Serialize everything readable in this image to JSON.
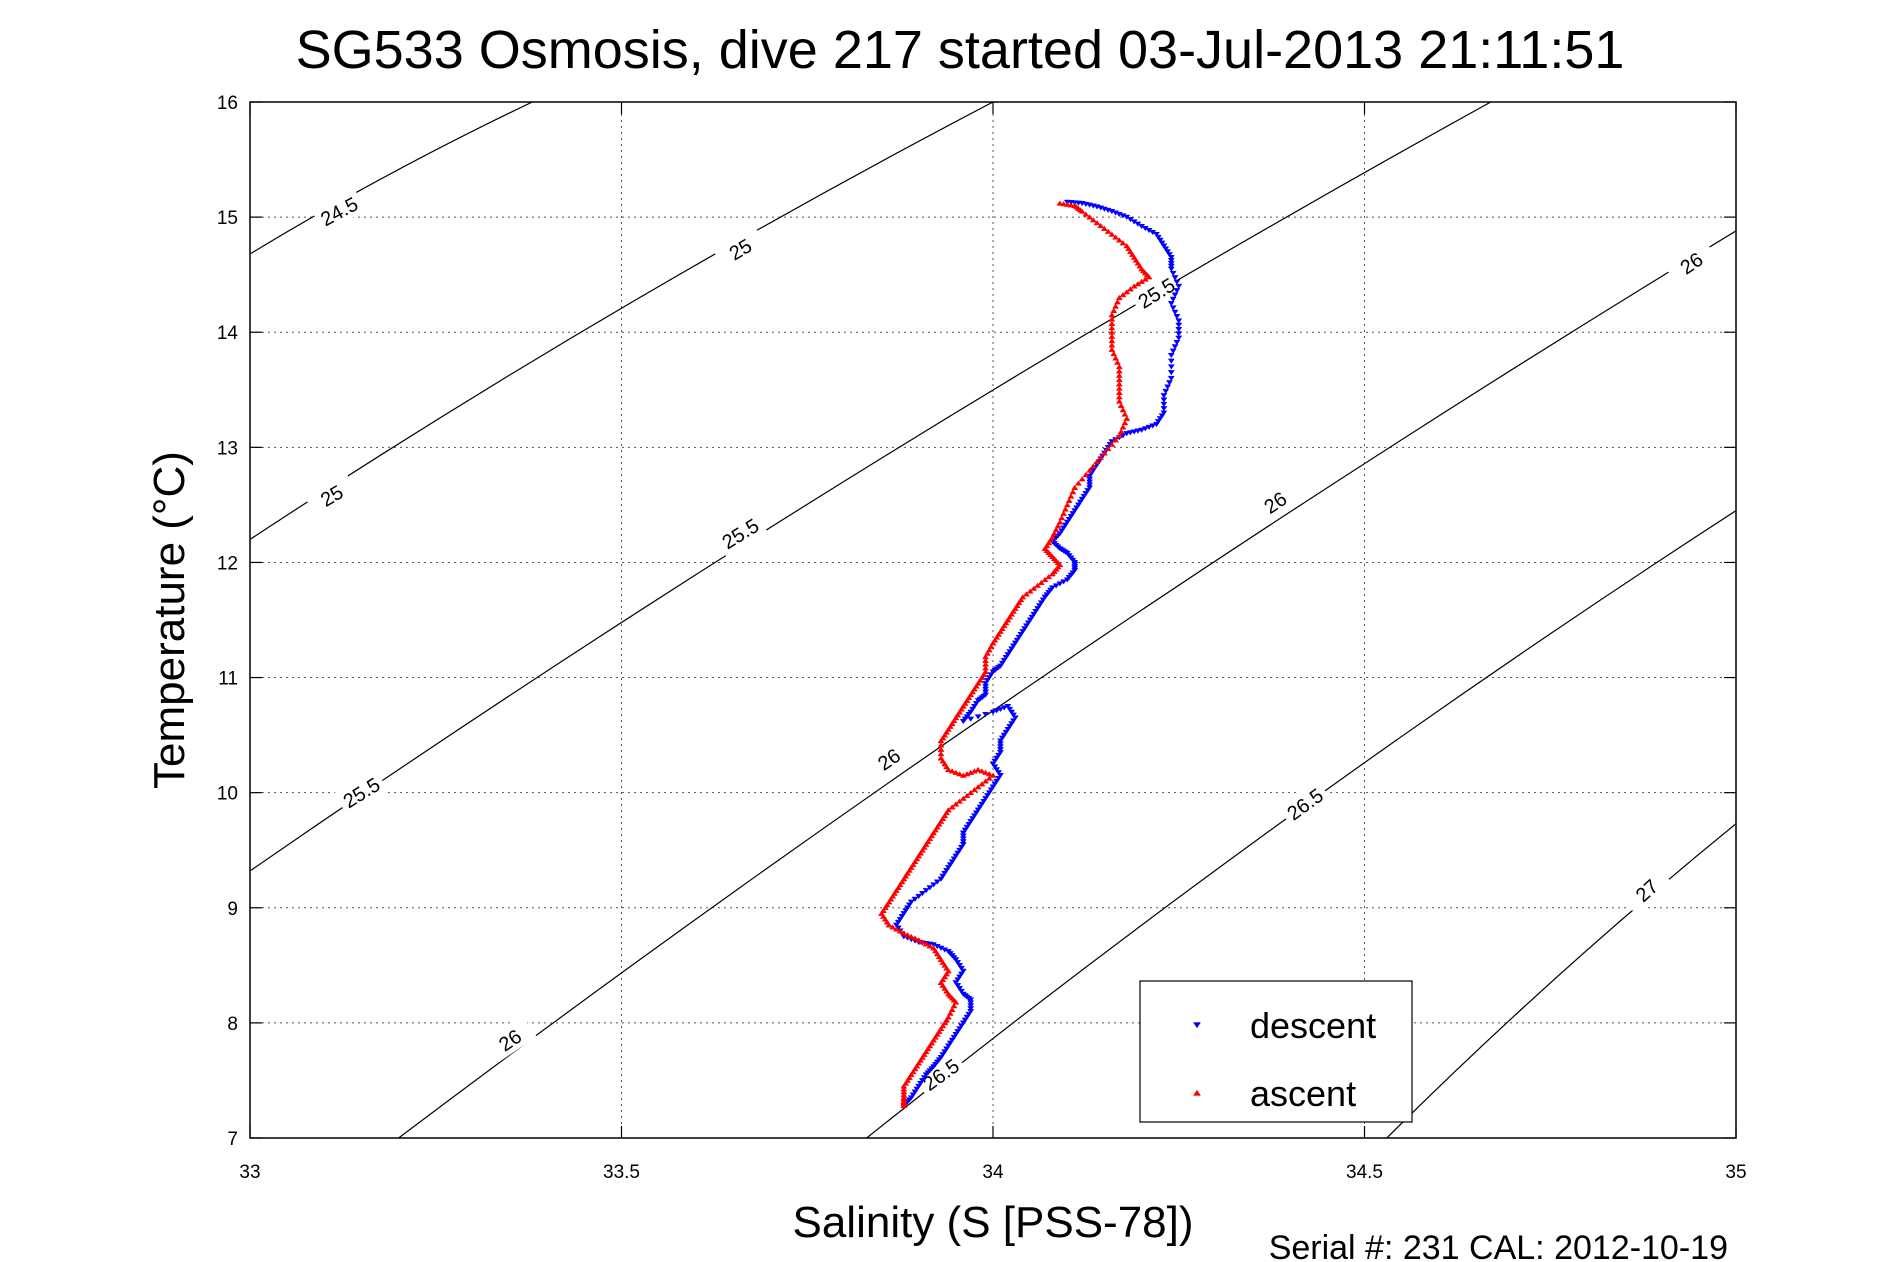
{
  "chart_data": {
    "type": "scatter",
    "title": "SG533 Osmosis, dive 217 started 03-Jul-2013 21:11:51",
    "xlabel": "Salinity (S [PSS-78])",
    "ylabel": "Temperature (°C)",
    "xlim": [
      33,
      35
    ],
    "ylim": [
      7,
      16
    ],
    "xticks": [
      "33",
      "33.5",
      "34",
      "34.5",
      "35"
    ],
    "yticks": [
      "7",
      "8",
      "9",
      "10",
      "11",
      "12",
      "13",
      "14",
      "15",
      "16"
    ],
    "grid": true,
    "legend_position": "bottom-right",
    "footer": "Serial #: 231  CAL: 2012-10-19",
    "contours": [
      {
        "level": "24.5",
        "points": [
          [
            33,
            14.68
          ],
          [
            33.38,
            16
          ]
        ],
        "labels": [
          [
            33.12,
            15.05
          ]
        ]
      },
      {
        "level": "25",
        "points": [
          [
            33,
            12.2
          ],
          [
            34.0,
            16
          ]
        ],
        "labels": [
          [
            33.66,
            14.72
          ],
          [
            33.11,
            12.58
          ]
        ]
      },
      {
        "level": "25.5",
        "points": [
          [
            33,
            9.32
          ],
          [
            34.67,
            16
          ]
        ],
        "labels": [
          [
            33.66,
            12.25
          ],
          [
            33.15,
            10.0
          ],
          [
            34.22,
            14.34
          ]
        ]
      },
      {
        "level": "26",
        "points": [
          [
            33.2,
            7
          ],
          [
            35,
            14.88
          ]
        ],
        "labels": [
          [
            33.35,
            7.85
          ],
          [
            33.86,
            10.29
          ],
          [
            34.38,
            12.52
          ],
          [
            34.94,
            14.6
          ]
        ]
      },
      {
        "level": "26.5",
        "points": [
          [
            33.83,
            7
          ],
          [
            35,
            12.45
          ]
        ],
        "labels": [
          [
            33.93,
            7.55
          ],
          [
            34.42,
            9.9
          ]
        ]
      },
      {
        "level": "27",
        "points": [
          [
            34.53,
            7
          ],
          [
            35,
            9.73
          ]
        ],
        "labels": [
          [
            34.88,
            9.15
          ]
        ]
      }
    ],
    "series": [
      {
        "name": "descent",
        "color": "#0000ff",
        "marker": "triangle-down",
        "points": [
          [
            34.1,
            15.13
          ],
          [
            34.12,
            15.12
          ],
          [
            34.14,
            15.09
          ],
          [
            34.16,
            15.05
          ],
          [
            34.18,
            15.0
          ],
          [
            34.2,
            14.92
          ],
          [
            34.22,
            14.85
          ],
          [
            34.23,
            14.75
          ],
          [
            34.24,
            14.65
          ],
          [
            34.24,
            14.55
          ],
          [
            34.25,
            14.4
          ],
          [
            34.24,
            14.25
          ],
          [
            34.25,
            14.1
          ],
          [
            34.25,
            13.95
          ],
          [
            34.24,
            13.8
          ],
          [
            34.24,
            13.6
          ],
          [
            34.23,
            13.45
          ],
          [
            34.23,
            13.3
          ],
          [
            34.22,
            13.2
          ],
          [
            34.2,
            13.15
          ],
          [
            34.18,
            13.12
          ],
          [
            34.16,
            13.05
          ],
          [
            34.15,
            12.95
          ],
          [
            34.14,
            12.85
          ],
          [
            34.13,
            12.75
          ],
          [
            34.13,
            12.65
          ],
          [
            34.12,
            12.55
          ],
          [
            34.11,
            12.45
          ],
          [
            34.1,
            12.35
          ],
          [
            34.09,
            12.25
          ],
          [
            34.08,
            12.18
          ],
          [
            34.09,
            12.12
          ],
          [
            34.1,
            12.08
          ],
          [
            34.11,
            12.0
          ],
          [
            34.11,
            11.93
          ],
          [
            34.1,
            11.85
          ],
          [
            34.08,
            11.78
          ],
          [
            34.07,
            11.7
          ],
          [
            34.06,
            11.6
          ],
          [
            34.05,
            11.5
          ],
          [
            34.04,
            11.4
          ],
          [
            34.03,
            11.3
          ],
          [
            34.02,
            11.2
          ],
          [
            34.01,
            11.1
          ],
          [
            34.0,
            11.05
          ],
          [
            33.99,
            10.95
          ],
          [
            33.99,
            10.85
          ],
          [
            33.98,
            10.8
          ],
          [
            33.97,
            10.7
          ],
          [
            33.96,
            10.62
          ],
          [
            34.0,
            10.7
          ],
          [
            34.02,
            10.75
          ],
          [
            34.03,
            10.65
          ],
          [
            34.02,
            10.55
          ],
          [
            34.01,
            10.45
          ],
          [
            34.01,
            10.35
          ],
          [
            34.0,
            10.25
          ],
          [
            34.01,
            10.15
          ],
          [
            34.0,
            10.05
          ],
          [
            33.99,
            9.95
          ],
          [
            33.98,
            9.85
          ],
          [
            33.97,
            9.75
          ],
          [
            33.96,
            9.65
          ],
          [
            33.96,
            9.55
          ],
          [
            33.95,
            9.45
          ],
          [
            33.94,
            9.35
          ],
          [
            33.93,
            9.25
          ],
          [
            33.91,
            9.15
          ],
          [
            33.89,
            9.05
          ],
          [
            33.88,
            8.95
          ],
          [
            33.87,
            8.85
          ],
          [
            33.88,
            8.75
          ],
          [
            33.9,
            8.7
          ],
          [
            33.92,
            8.68
          ],
          [
            33.94,
            8.62
          ],
          [
            33.95,
            8.55
          ],
          [
            33.96,
            8.45
          ],
          [
            33.95,
            8.35
          ],
          [
            33.96,
            8.25
          ],
          [
            33.97,
            8.2
          ],
          [
            33.97,
            8.1
          ],
          [
            33.96,
            8.0
          ],
          [
            33.95,
            7.9
          ],
          [
            33.94,
            7.8
          ],
          [
            33.93,
            7.7
          ],
          [
            33.92,
            7.62
          ],
          [
            33.91,
            7.55
          ],
          [
            33.9,
            7.45
          ],
          [
            33.89,
            7.35
          ],
          [
            33.88,
            7.28
          ]
        ]
      },
      {
        "name": "ascent",
        "color": "#ff0000",
        "marker": "triangle-up",
        "points": [
          [
            34.09,
            15.12
          ],
          [
            34.11,
            15.1
          ],
          [
            34.12,
            15.05
          ],
          [
            34.14,
            14.95
          ],
          [
            34.16,
            14.85
          ],
          [
            34.18,
            14.75
          ],
          [
            34.19,
            14.65
          ],
          [
            34.2,
            14.55
          ],
          [
            34.21,
            14.48
          ],
          [
            34.19,
            14.4
          ],
          [
            34.17,
            14.3
          ],
          [
            34.16,
            14.15
          ],
          [
            34.16,
            14.0
          ],
          [
            34.16,
            13.85
          ],
          [
            34.17,
            13.7
          ],
          [
            34.17,
            13.55
          ],
          [
            34.17,
            13.4
          ],
          [
            34.18,
            13.25
          ],
          [
            34.17,
            13.1
          ],
          [
            34.15,
            12.95
          ],
          [
            34.13,
            12.8
          ],
          [
            34.11,
            12.65
          ],
          [
            34.1,
            12.5
          ],
          [
            34.09,
            12.35
          ],
          [
            34.08,
            12.22
          ],
          [
            34.07,
            12.12
          ],
          [
            34.08,
            12.05
          ],
          [
            34.09,
            11.98
          ],
          [
            34.08,
            11.9
          ],
          [
            34.06,
            11.8
          ],
          [
            34.04,
            11.7
          ],
          [
            34.03,
            11.6
          ],
          [
            34.02,
            11.5
          ],
          [
            34.01,
            11.4
          ],
          [
            34.0,
            11.3
          ],
          [
            33.99,
            11.18
          ],
          [
            33.99,
            11.05
          ],
          [
            33.98,
            10.95
          ],
          [
            33.97,
            10.85
          ],
          [
            33.96,
            10.75
          ],
          [
            33.95,
            10.65
          ],
          [
            33.94,
            10.55
          ],
          [
            33.93,
            10.45
          ],
          [
            33.93,
            10.3
          ],
          [
            33.94,
            10.2
          ],
          [
            33.96,
            10.15
          ],
          [
            33.98,
            10.2
          ],
          [
            34.0,
            10.15
          ],
          [
            33.98,
            10.05
          ],
          [
            33.96,
            9.95
          ],
          [
            33.94,
            9.85
          ],
          [
            33.93,
            9.75
          ],
          [
            33.92,
            9.65
          ],
          [
            33.91,
            9.55
          ],
          [
            33.9,
            9.45
          ],
          [
            33.89,
            9.35
          ],
          [
            33.88,
            9.25
          ],
          [
            33.87,
            9.15
          ],
          [
            33.86,
            9.05
          ],
          [
            33.85,
            8.95
          ],
          [
            33.86,
            8.85
          ],
          [
            33.88,
            8.78
          ],
          [
            33.9,
            8.72
          ],
          [
            33.92,
            8.65
          ],
          [
            33.93,
            8.55
          ],
          [
            33.94,
            8.45
          ],
          [
            33.93,
            8.35
          ],
          [
            33.94,
            8.25
          ],
          [
            33.95,
            8.18
          ],
          [
            33.94,
            8.05
          ],
          [
            33.93,
            7.95
          ],
          [
            33.92,
            7.85
          ],
          [
            33.91,
            7.75
          ],
          [
            33.9,
            7.65
          ],
          [
            33.89,
            7.55
          ],
          [
            33.88,
            7.45
          ],
          [
            33.88,
            7.35
          ],
          [
            33.88,
            7.28
          ]
        ]
      }
    ]
  }
}
